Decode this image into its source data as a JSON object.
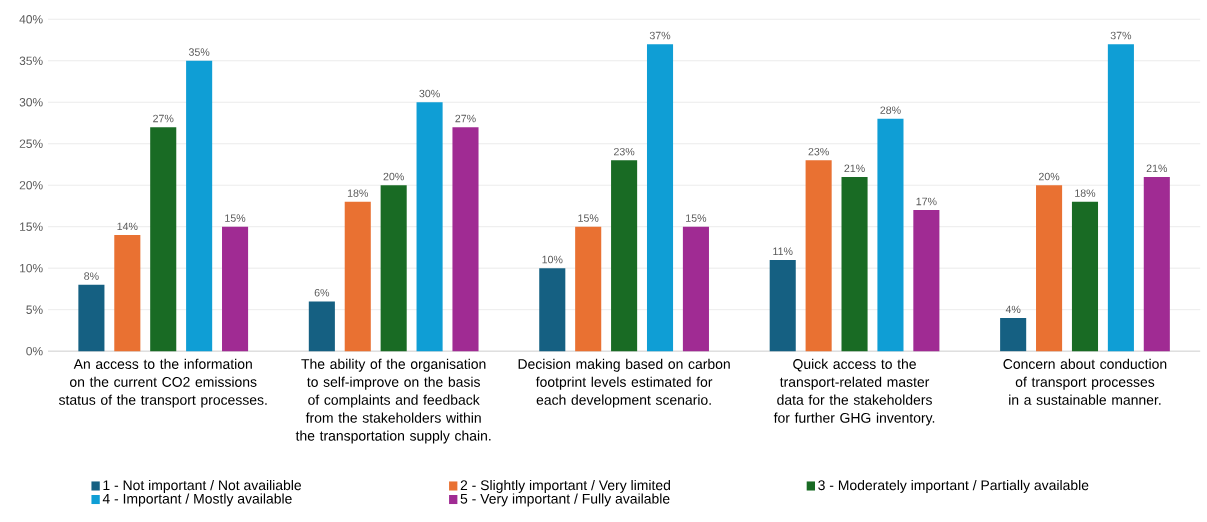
{
  "chart_data": {
    "type": "bar",
    "categories": [
      "An access to the information on the current CO2 emissions status of the transport processes.",
      "The ability of the organisation to self-improve on the basis of complaints and feedback from the stakeholders within the transportation supply chain.",
      "Decision making based on carbon footprint levels estimated for each development scenario.",
      "Quick access to the transport-related master data for the stakeholders for further GHG inventory.",
      "Concern about conduction of transport processes in a sustainable manner."
    ],
    "series": [
      {
        "name": "1 - Not important / Not availiable",
        "color": "#156082",
        "values": [
          8,
          6,
          10,
          11,
          4
        ],
        "value_labels": [
          "8%",
          "6%",
          "10%",
          "11%",
          "4%"
        ]
      },
      {
        "name": "2 - Slightly important / Very limited",
        "color": "#e97132",
        "values": [
          14,
          18,
          15,
          23,
          20
        ],
        "value_labels": [
          "14%",
          "18%",
          "15%",
          "23%",
          "20%"
        ]
      },
      {
        "name": "3 - Moderately important / Partially available",
        "color": "#196b24",
        "values": [
          27,
          20,
          23,
          21,
          18
        ],
        "value_labels": [
          "27%",
          "20%",
          "23%",
          "21%",
          "18%"
        ]
      },
      {
        "name": "4 - Important / Mostly available",
        "color": "#0f9ed5",
        "values": [
          35,
          30,
          37,
          28,
          37
        ],
        "value_labels": [
          "35%",
          "30%",
          "37%",
          "28%",
          "37%"
        ]
      },
      {
        "name": "5 - Very important / Fully available",
        "color": "#a02b93",
        "values": [
          15,
          27,
          15,
          17,
          21
        ],
        "value_labels": [
          "15%",
          "27%",
          "15%",
          "17%",
          "21%"
        ]
      }
    ],
    "ylim": [
      0,
      40
    ],
    "yticks": [
      {
        "value": 0,
        "label": "0%"
      },
      {
        "value": 5,
        "label": "5%"
      },
      {
        "value": 10,
        "label": "10%"
      },
      {
        "value": 15,
        "label": "15%"
      },
      {
        "value": 20,
        "label": "20%"
      },
      {
        "value": 25,
        "label": "25%"
      },
      {
        "value": 30,
        "label": "30%"
      },
      {
        "value": 35,
        "label": "35%"
      },
      {
        "value": 40,
        "label": "40%"
      }
    ],
    "grid": "y",
    "legend": "bottom"
  }
}
